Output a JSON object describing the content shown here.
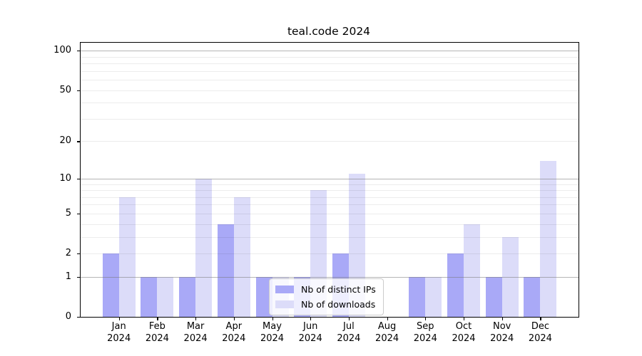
{
  "chart_data": {
    "type": "bar",
    "title": "teal.code 2024",
    "x_year_label": "2024",
    "categories": [
      "Jan",
      "Feb",
      "Mar",
      "Apr",
      "May",
      "Jun",
      "Jul",
      "Aug",
      "Sep",
      "Oct",
      "Nov",
      "Dec"
    ],
    "series": [
      {
        "name": "Nb of distinct IPs",
        "color": "#a9a9f7",
        "values": [
          2,
          1,
          1,
          4,
          1,
          1,
          2,
          0,
          1,
          2,
          1,
          1
        ]
      },
      {
        "name": "Nb of downloads",
        "color": "#dcdcf9",
        "values": [
          7,
          1,
          10,
          7,
          1,
          8,
          11,
          0,
          1,
          4,
          3,
          14
        ]
      }
    ],
    "y_axis": {
      "scale": "log1p",
      "tick_labels": [
        0,
        1,
        2,
        5,
        10,
        20,
        50,
        100
      ],
      "major_gridlines": [
        1,
        10,
        100
      ],
      "minor_gridlines": [
        2,
        3,
        4,
        5,
        6,
        7,
        8,
        9,
        20,
        30,
        40,
        50,
        60,
        70,
        80,
        90
      ],
      "range": [
        0,
        112
      ]
    },
    "legend": {
      "position": "lower center"
    },
    "colors": {
      "background": "#ffffff",
      "spine": "#000000",
      "text": "#000000",
      "major_grid": "#b3b3b3",
      "minor_grid": "#ebebeb"
    }
  }
}
